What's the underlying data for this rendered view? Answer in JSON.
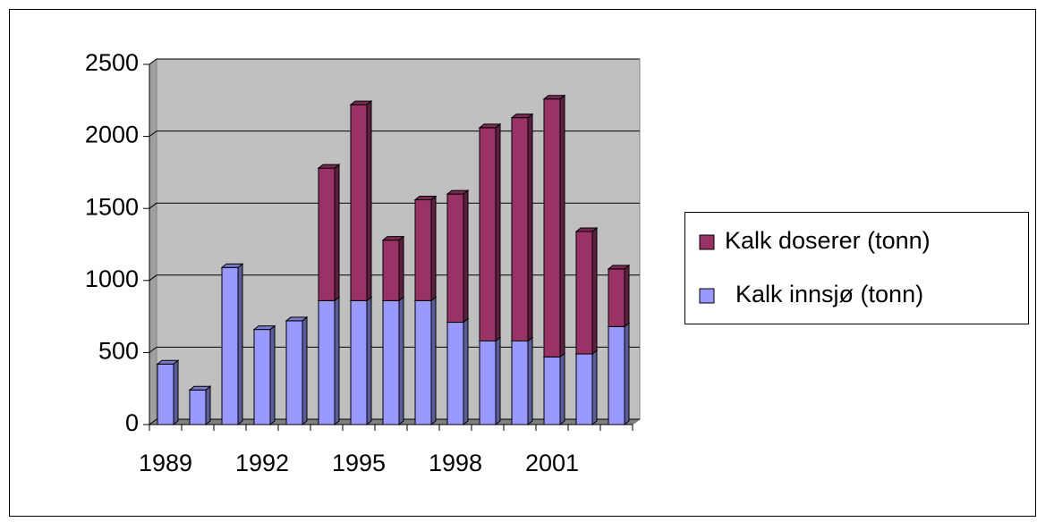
{
  "chart_data": {
    "type": "bar",
    "stacked": true,
    "grid": true,
    "legend": "right",
    "categories": [
      "1989",
      null,
      null,
      "1992",
      null,
      null,
      "1995",
      null,
      null,
      "1998",
      null,
      null,
      "2001",
      null,
      null
    ],
    "series": [
      {
        "name": "Kalk innsjø (tonn)",
        "color": "#9999ff",
        "values": [
          420,
          240,
          1090,
          660,
          720,
          860,
          860,
          860,
          860,
          710,
          580,
          580,
          470,
          490,
          680
        ]
      },
      {
        "name": "Kalk doserer (tonn)",
        "color": "#993366",
        "values": [
          null,
          null,
          null,
          null,
          null,
          920,
          1360,
          420,
          700,
          890,
          1480,
          1550,
          1790,
          850,
          400
        ]
      }
    ],
    "ylim": [
      0,
      2500
    ],
    "yticks": [
      0,
      500,
      1000,
      1500,
      2000,
      2500
    ]
  }
}
